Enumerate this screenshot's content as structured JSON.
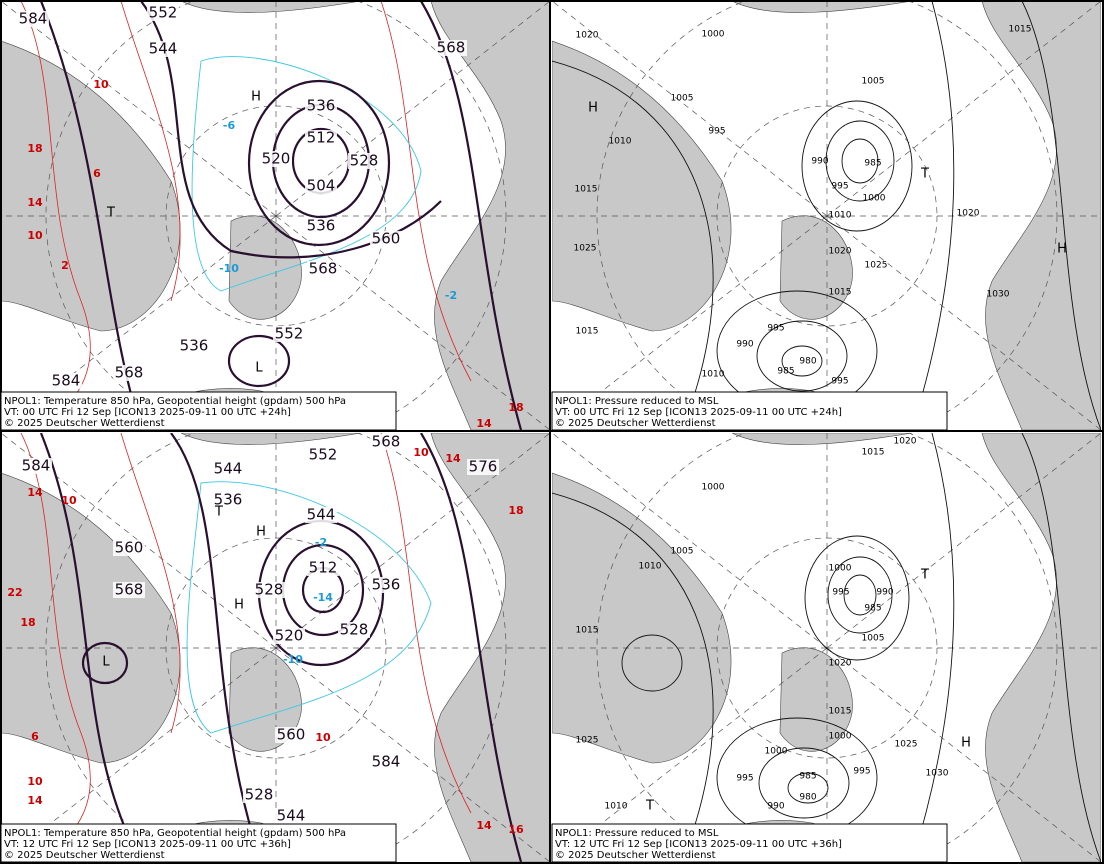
{
  "panels": [
    {
      "caption": [
        "NPOL1: Temperature 850 hPa, Geopotential height (gpdam) 500 hPa",
        "VT: 00 UTC Fri  12 Sep [ICON13 2025-09-11 00 UTC +24h]",
        "© 2025 Deutscher Wetterdienst"
      ],
      "labels": [
        "552",
        "536",
        "512",
        "520",
        "504",
        "528",
        "536",
        "560",
        "568",
        "552",
        "536",
        "584",
        "568",
        "544",
        "568",
        "584",
        "10",
        "18",
        "14",
        "10",
        "6",
        "2",
        "-6",
        "-10",
        "-2",
        "18",
        "14",
        "H",
        "T",
        "L"
      ]
    },
    {
      "caption": [
        "NPOL1: Pressure reduced to MSL",
        "VT: 00 UTC Fri  12 Sep [ICON13 2025-09-11 00 UTC +24h]",
        "© 2025 Deutscher Wetterdienst"
      ],
      "labels": [
        "1020",
        "1000",
        "1005",
        "1010",
        "995",
        "1015",
        "1025",
        "990",
        "985",
        "995",
        "1000",
        "1010",
        "1020",
        "1015",
        "1020",
        "1030",
        "995",
        "990",
        "980",
        "985",
        "1010",
        "1015",
        "995",
        "1025",
        "1005",
        "1015",
        "H",
        "H",
        "T"
      ]
    },
    {
      "caption": [
        "NPOL1: Temperature 850 hPa, Geopotential height (gpdam) 500 hPa",
        "VT: 12 UTC Fri  12 Sep [ICON13 2025-09-11 00 UTC +36h]",
        "© 2025 Deutscher Wetterdienst"
      ],
      "labels": [
        "584",
        "544",
        "536",
        "528",
        "512",
        "520",
        "528",
        "536",
        "560",
        "568",
        "552",
        "544",
        "568",
        "576",
        "584",
        "528",
        "544",
        "560",
        "14",
        "10",
        "22",
        "18",
        "6",
        "10",
        "14",
        "18",
        "14",
        "16",
        "10",
        "14",
        "10",
        "-10",
        "-2",
        "-14",
        "H",
        "H",
        "L",
        "T"
      ]
    },
    {
      "caption": [
        "NPOL1: Pressure reduced to MSL",
        "VT: 12 UTC Fri  12 Sep [ICON13 2025-09-11 00 UTC +36h]",
        "© 2025 Deutscher Wetterdienst"
      ],
      "labels": [
        "1020",
        "1015",
        "1000",
        "1005",
        "1010",
        "1015",
        "1025",
        "1000",
        "995",
        "990",
        "985",
        "1005",
        "1020",
        "1015",
        "1000",
        "1025",
        "1030",
        "1000",
        "995",
        "985",
        "980",
        "990",
        "995",
        "1010",
        "H",
        "T",
        "T"
      ]
    }
  ]
}
